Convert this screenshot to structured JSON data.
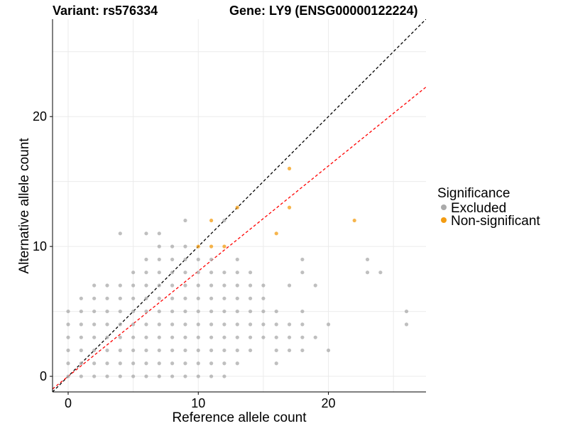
{
  "chart_data": {
    "type": "scatter",
    "title_left": "Variant: rs576334",
    "title_right": "Gene: LY9 (ENSG00000122224)",
    "xlabel": "Reference allele count",
    "ylabel": "Alternative allele count",
    "xlim": [
      -1.2,
      27.5
    ],
    "ylim": [
      -1.2,
      27.5
    ],
    "xticks": [
      0,
      10,
      20
    ],
    "yticks": [
      0,
      10,
      20
    ],
    "grid": true,
    "legend": {
      "title": "Significance",
      "position": "right",
      "entries": [
        {
          "label": "Excluded",
          "color": "#aaaaaa"
        },
        {
          "label": "Non-significant",
          "color": "#f39c12"
        }
      ]
    },
    "reference_lines": [
      {
        "name": "identity",
        "slope": 1.0,
        "intercept": 0,
        "color": "#000000",
        "dash": true
      },
      {
        "name": "fit",
        "slope": 0.81,
        "intercept": 0,
        "color": "#ff0000",
        "dash": true
      }
    ],
    "series": [
      {
        "name": "Excluded",
        "color": "#aaaaaa",
        "points": [
          [
            0,
            0
          ],
          [
            0,
            1
          ],
          [
            0,
            2
          ],
          [
            0,
            3
          ],
          [
            0,
            4
          ],
          [
            0,
            5
          ],
          [
            1,
            0
          ],
          [
            1,
            1
          ],
          [
            1,
            2
          ],
          [
            1,
            3
          ],
          [
            1,
            4
          ],
          [
            1,
            5
          ],
          [
            1,
            6
          ],
          [
            2,
            0
          ],
          [
            2,
            1
          ],
          [
            2,
            2
          ],
          [
            2,
            3
          ],
          [
            2,
            4
          ],
          [
            2,
            5
          ],
          [
            2,
            6
          ],
          [
            2,
            7
          ],
          [
            3,
            0
          ],
          [
            3,
            1
          ],
          [
            3,
            2
          ],
          [
            3,
            3
          ],
          [
            3,
            4
          ],
          [
            3,
            5
          ],
          [
            3,
            6
          ],
          [
            3,
            7
          ],
          [
            4,
            0
          ],
          [
            4,
            1
          ],
          [
            4,
            2
          ],
          [
            4,
            3
          ],
          [
            4,
            4
          ],
          [
            4,
            5
          ],
          [
            4,
            6
          ],
          [
            4,
            7
          ],
          [
            4,
            11
          ],
          [
            5,
            0
          ],
          [
            5,
            1
          ],
          [
            5,
            2
          ],
          [
            5,
            3
          ],
          [
            5,
            4
          ],
          [
            5,
            5
          ],
          [
            5,
            6
          ],
          [
            5,
            7
          ],
          [
            5,
            8
          ],
          [
            6,
            0
          ],
          [
            6,
            1
          ],
          [
            6,
            2
          ],
          [
            6,
            3
          ],
          [
            6,
            4
          ],
          [
            6,
            5
          ],
          [
            6,
            6
          ],
          [
            6,
            7
          ],
          [
            6,
            8
          ],
          [
            6,
            9
          ],
          [
            6,
            11
          ],
          [
            7,
            0
          ],
          [
            7,
            1
          ],
          [
            7,
            2
          ],
          [
            7,
            3
          ],
          [
            7,
            4
          ],
          [
            7,
            5
          ],
          [
            7,
            6
          ],
          [
            7,
            7
          ],
          [
            7,
            8
          ],
          [
            7,
            9
          ],
          [
            7,
            10
          ],
          [
            7,
            11
          ],
          [
            8,
            0
          ],
          [
            8,
            1
          ],
          [
            8,
            2
          ],
          [
            8,
            3
          ],
          [
            8,
            4
          ],
          [
            8,
            5
          ],
          [
            8,
            6
          ],
          [
            8,
            7
          ],
          [
            8,
            8
          ],
          [
            8,
            9
          ],
          [
            8,
            10
          ],
          [
            9,
            0
          ],
          [
            9,
            1
          ],
          [
            9,
            2
          ],
          [
            9,
            3
          ],
          [
            9,
            4
          ],
          [
            9,
            5
          ],
          [
            9,
            6
          ],
          [
            9,
            7
          ],
          [
            9,
            8
          ],
          [
            9,
            9
          ],
          [
            9,
            10
          ],
          [
            9,
            12
          ],
          [
            10,
            0
          ],
          [
            10,
            1
          ],
          [
            10,
            2
          ],
          [
            10,
            3
          ],
          [
            10,
            4
          ],
          [
            10,
            5
          ],
          [
            10,
            6
          ],
          [
            10,
            7
          ],
          [
            10,
            8
          ],
          [
            10,
            9
          ],
          [
            11,
            0
          ],
          [
            11,
            1
          ],
          [
            11,
            2
          ],
          [
            11,
            3
          ],
          [
            11,
            4
          ],
          [
            11,
            5
          ],
          [
            11,
            6
          ],
          [
            11,
            7
          ],
          [
            11,
            8
          ],
          [
            11,
            9
          ],
          [
            12,
            0
          ],
          [
            12,
            1
          ],
          [
            12,
            2
          ],
          [
            12,
            3
          ],
          [
            12,
            4
          ],
          [
            12,
            5
          ],
          [
            12,
            6
          ],
          [
            12,
            7
          ],
          [
            12,
            8
          ],
          [
            12,
            12
          ],
          [
            13,
            1
          ],
          [
            13,
            2
          ],
          [
            13,
            3
          ],
          [
            13,
            4
          ],
          [
            13,
            5
          ],
          [
            13,
            6
          ],
          [
            13,
            7
          ],
          [
            13,
            8
          ],
          [
            13,
            9
          ],
          [
            14,
            2
          ],
          [
            14,
            3
          ],
          [
            14,
            4
          ],
          [
            14,
            5
          ],
          [
            14,
            6
          ],
          [
            14,
            7
          ],
          [
            14,
            8
          ],
          [
            15,
            3
          ],
          [
            15,
            4
          ],
          [
            15,
            5
          ],
          [
            15,
            6
          ],
          [
            15,
            7
          ],
          [
            16,
            1
          ],
          [
            16,
            2
          ],
          [
            16,
            3
          ],
          [
            16,
            4
          ],
          [
            16,
            5
          ],
          [
            17,
            2
          ],
          [
            17,
            3
          ],
          [
            17,
            4
          ],
          [
            17,
            7
          ],
          [
            18,
            2
          ],
          [
            18,
            3
          ],
          [
            18,
            4
          ],
          [
            18,
            5
          ],
          [
            18,
            8
          ],
          [
            18,
            9
          ],
          [
            19,
            3
          ],
          [
            19,
            7
          ],
          [
            20,
            2
          ],
          [
            20,
            4
          ],
          [
            23,
            8
          ],
          [
            23,
            9
          ],
          [
            24,
            8
          ],
          [
            26,
            4
          ],
          [
            26,
            5
          ]
        ]
      },
      {
        "name": "Non-significant",
        "color": "#f39c12",
        "points": [
          [
            10,
            10
          ],
          [
            11,
            10
          ],
          [
            11,
            12
          ],
          [
            12,
            10
          ],
          [
            13,
            13
          ],
          [
            16,
            11
          ],
          [
            17,
            13
          ],
          [
            17,
            16
          ],
          [
            22,
            12
          ]
        ]
      }
    ]
  }
}
